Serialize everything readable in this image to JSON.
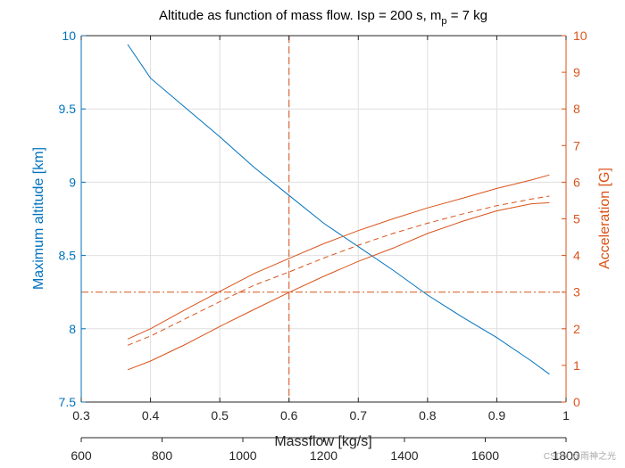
{
  "chart_data": {
    "type": "line",
    "title": "Altitude as function of mass flow. Isp = 200 s, m",
    "title_sub": "p",
    "title_tail": " = 7 kg",
    "xlabel": "Massflow [kg/s]",
    "ylabel_left": "Maximum altitude [km]",
    "ylabel_right": "Acceleration [G]",
    "xlim": [
      0.3,
      1.0
    ],
    "ylim_left": [
      7.5,
      10
    ],
    "ylim_right": [
      0,
      10
    ],
    "x_ticks": [
      "0.3",
      "0.4",
      "0.5",
      "0.6",
      "0.7",
      "0.8",
      "0.9",
      "1"
    ],
    "y_left_ticks": [
      "7.5",
      "8",
      "8.5",
      "9",
      "9.5",
      "10"
    ],
    "y_right_ticks": [
      "0",
      "1",
      "2",
      "3",
      "4",
      "5",
      "6",
      "7",
      "8",
      "9",
      "10"
    ],
    "x2_range": [
      600,
      1800
    ],
    "x2_ticks": [
      "600",
      "800",
      "1000",
      "1200",
      "1400",
      "1600",
      "1800"
    ],
    "grid": true,
    "colors": {
      "left": "#0072BD",
      "right": "#D95319",
      "axis": "#262626",
      "grid": "#dfdfdf"
    },
    "series": [
      {
        "name": "Maximum altitude",
        "axis": "left",
        "style": "solid",
        "x": [
          0.367,
          0.4,
          0.45,
          0.5,
          0.55,
          0.6,
          0.65,
          0.7,
          0.75,
          0.8,
          0.85,
          0.9,
          0.95,
          0.976
        ],
        "values": [
          9.94,
          9.71,
          9.51,
          9.31,
          9.1,
          8.91,
          8.72,
          8.56,
          8.4,
          8.23,
          8.08,
          7.94,
          7.78,
          7.69
        ]
      },
      {
        "name": "Acceleration upper",
        "axis": "right",
        "style": "solid",
        "x": [
          0.367,
          0.4,
          0.45,
          0.5,
          0.55,
          0.6,
          0.65,
          0.7,
          0.75,
          0.8,
          0.85,
          0.9,
          0.95,
          0.976
        ],
        "values": [
          1.72,
          2.0,
          2.52,
          3.02,
          3.51,
          3.92,
          4.32,
          4.68,
          5.0,
          5.3,
          5.56,
          5.83,
          6.06,
          6.2
        ]
      },
      {
        "name": "Acceleration mean",
        "axis": "right",
        "style": "dashed",
        "x": [
          0.367,
          0.4,
          0.45,
          0.5,
          0.55,
          0.6,
          0.65,
          0.7,
          0.75,
          0.8,
          0.85,
          0.9,
          0.95,
          0.976
        ],
        "values": [
          1.55,
          1.8,
          2.27,
          2.74,
          3.19,
          3.55,
          3.93,
          4.28,
          4.6,
          4.88,
          5.13,
          5.36,
          5.54,
          5.62
        ]
      },
      {
        "name": "Acceleration lower",
        "axis": "right",
        "style": "solid",
        "x": [
          0.367,
          0.4,
          0.45,
          0.5,
          0.55,
          0.6,
          0.65,
          0.7,
          0.75,
          0.8,
          0.85,
          0.9,
          0.95,
          0.976
        ],
        "values": [
          0.88,
          1.12,
          1.57,
          2.06,
          2.53,
          2.99,
          3.43,
          3.84,
          4.2,
          4.6,
          4.93,
          5.22,
          5.41,
          5.44
        ]
      }
    ],
    "reference_lines": [
      {
        "name": "vertical-ref",
        "axis": "x",
        "value": 0.6,
        "style": "dashed"
      },
      {
        "name": "horizontal-ref",
        "axis": "right",
        "value": 3,
        "style": "dashdot"
      }
    ]
  },
  "watermark": "CSDN @雨神之光"
}
